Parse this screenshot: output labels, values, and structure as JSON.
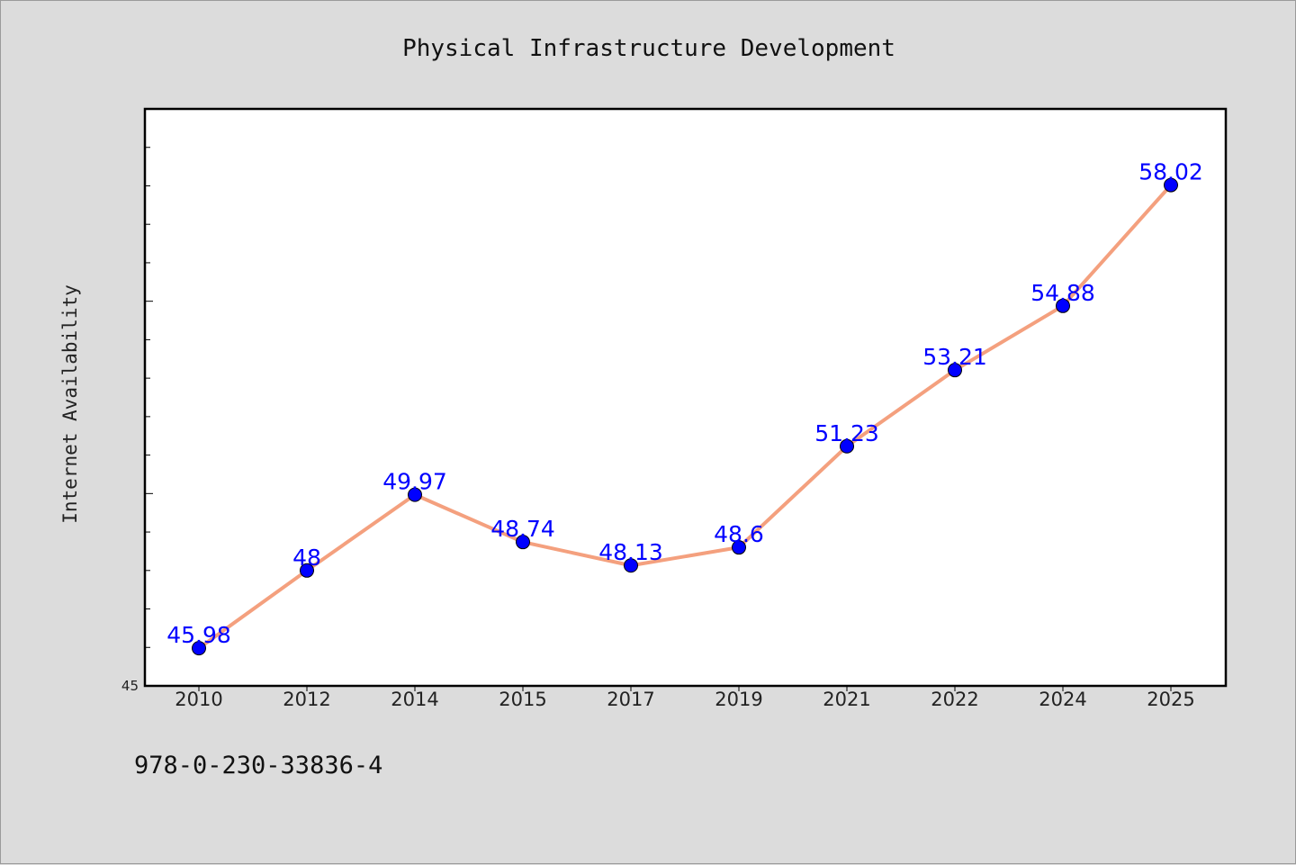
{
  "chart_data": {
    "type": "line",
    "title": "Physical Infrastructure Development",
    "xlabel": "",
    "ylabel": "Internet Availability",
    "categories": [
      "2010",
      "2012",
      "2014",
      "2015",
      "2017",
      "2019",
      "2021",
      "2022",
      "2024",
      "2025"
    ],
    "series": [
      {
        "values": [
          45.98,
          48.0,
          49.97,
          48.74,
          48.13,
          48.6,
          51.23,
          53.21,
          54.88,
          58.02
        ],
        "data_labels": [
          "45.98",
          "48",
          "49.97",
          "48.74",
          "48.13",
          "48.6",
          "51.23",
          "53.21",
          "54.88",
          "58.02"
        ],
        "line_color": "#f4a07e",
        "marker_color": "#0000ff"
      }
    ],
    "ylim": [
      45,
      60
    ],
    "ytick_labels": [
      "45"
    ],
    "grid": false,
    "legend": "none",
    "colors": {
      "background": "#dcdcdc",
      "plot_area": "#ffffff",
      "label": "#0000ff"
    }
  },
  "footer": {
    "code": "978-0-230-33836-4"
  }
}
